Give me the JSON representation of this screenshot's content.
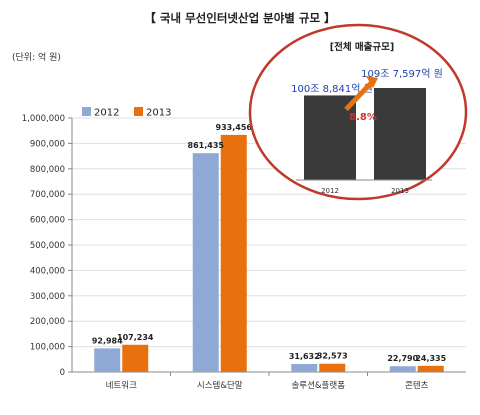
{
  "chart_data": {
    "type": "bar",
    "title": "【 국내 무선인터넷산업 분야별 규모 】",
    "unit_label": "(단위: 억 원)",
    "categories": [
      "네트워크",
      "시스템&단말",
      "솔루션&플랫폼",
      "콘텐츠"
    ],
    "series": [
      {
        "name": "2012",
        "values": [
          92984,
          861435,
          31632,
          22790
        ],
        "color": "#8fa9d6"
      },
      {
        "name": "2013",
        "values": [
          107234,
          933456,
          32573,
          24335
        ],
        "color": "#e8710e"
      }
    ],
    "value_labels": {
      "2012": [
        "92,984",
        "861,435",
        "31,632",
        "22,790"
      ],
      "2013": [
        "107,234",
        "933,456",
        "32,573",
        "24,335"
      ]
    },
    "ylim": [
      0,
      1000000
    ],
    "yticks": [
      0,
      100000,
      200000,
      300000,
      400000,
      500000,
      600000,
      700000,
      800000,
      900000,
      1000000
    ],
    "ytick_labels": [
      "0",
      "100,000",
      "200,000",
      "300,000",
      "400,000",
      "500,000",
      "600,000",
      "700,000",
      "800,000",
      "900,000",
      "1,000,000"
    ],
    "grid": true,
    "legend_position": "top-left",
    "inset": {
      "title": "[전체 매출규모]",
      "categories": [
        "2012",
        "2013"
      ],
      "values": [
        1008841,
        1097597
      ],
      "value_labels": [
        "100조 8,841억 원",
        "109조 7,597억 원"
      ],
      "growth_label": "8.8%",
      "bar_color": "#3a3a3a",
      "arrow_color": "#e8710e",
      "ring_color": "#c0392b"
    }
  }
}
